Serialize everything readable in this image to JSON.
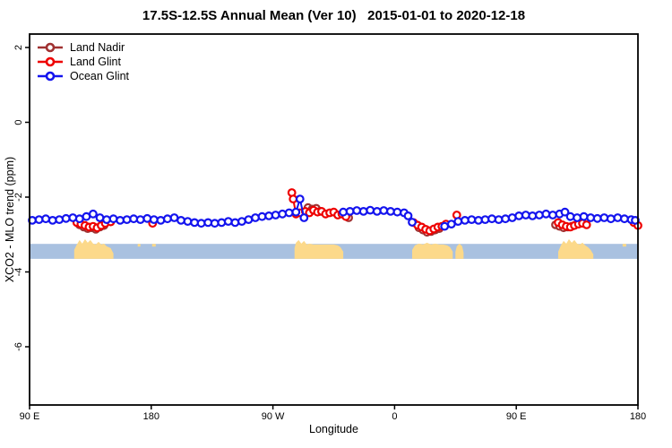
{
  "title": "17.5S-12.5S Annual Mean (Ver 10)   2015-01-01 to 2020-12-18",
  "axes": {
    "xlabel": "Longitude",
    "ylabel": "XCO2 - MLO trend (ppm)"
  },
  "legend": {
    "items": [
      {
        "id": "land-nadir",
        "label": "Land Nadir",
        "color": "#A03232"
      },
      {
        "id": "land-glint",
        "label": "Land Glint",
        "color": "#EE0000"
      },
      {
        "id": "ocean-glint",
        "label": "Ocean Glint",
        "color": "#1414EE"
      }
    ]
  },
  "chart_data": {
    "type": "line",
    "title": "17.5S-12.5S Annual Mean (Ver 10)   2015-01-01 to 2020-12-18",
    "xlabel": "Longitude",
    "ylabel": "XCO2 - MLO trend (ppm)",
    "x_units": "degrees eastward along axis, starting at 90E and wrapping past 180, 90W, 0, 90E to 180",
    "x_axis": {
      "range_deg": [
        90,
        540
      ],
      "ticks_deg": [
        90,
        180,
        270,
        360,
        450,
        540
      ],
      "tick_labels": [
        "90 E",
        "180",
        "90 W",
        "0",
        "90 E",
        "180"
      ]
    },
    "y_axis": {
      "range": [
        -7.5,
        2.4
      ],
      "ticks": [
        2,
        0,
        -2,
        -4,
        -6
      ],
      "tick_labels": [
        "2",
        "0",
        "-2",
        "-4",
        "-6"
      ],
      "grid": false
    },
    "legend_position": "top-left-inside",
    "series": [
      {
        "id": "land-nadir",
        "name": "Land Nadir",
        "color": "#A03232",
        "marker": "open-circle",
        "gap_break_deg": 7,
        "points": [
          [
            127,
            -2.74
          ],
          [
            130,
            -2.8
          ],
          [
            133,
            -2.84
          ],
          [
            136,
            -2.82
          ],
          [
            139,
            -2.86
          ],
          [
            142,
            -2.8
          ],
          [
            145,
            -2.76
          ],
          [
            296,
            -2.28
          ],
          [
            299,
            -2.32
          ],
          [
            302,
            -2.3
          ],
          [
            305,
            -2.38
          ],
          [
            326,
            -2.55
          ],
          [
            378,
            -2.82
          ],
          [
            381,
            -2.88
          ],
          [
            384,
            -2.94
          ],
          [
            387,
            -2.92
          ],
          [
            390,
            -2.88
          ],
          [
            393,
            -2.84
          ],
          [
            479,
            -2.74
          ],
          [
            482,
            -2.78
          ],
          [
            485,
            -2.82
          ],
          [
            488,
            -2.8
          ],
          [
            491,
            -2.78
          ]
        ]
      },
      {
        "id": "land-glint",
        "name": "Land Glint",
        "color": "#EE0000",
        "marker": "open-circle",
        "gap_break_deg": 7,
        "points": [
          [
            125,
            -2.68
          ],
          [
            128,
            -2.72
          ],
          [
            131,
            -2.76
          ],
          [
            134,
            -2.8
          ],
          [
            137,
            -2.78
          ],
          [
            140,
            -2.82
          ],
          [
            143,
            -2.76
          ],
          [
            146,
            -2.7
          ],
          [
            150,
            -2.66
          ],
          [
            181,
            -2.7
          ],
          [
            284,
            -1.88
          ],
          [
            285,
            -2.05
          ],
          [
            287,
            -2.45
          ],
          [
            290,
            -2.42
          ],
          [
            294,
            -2.38
          ],
          [
            297,
            -2.42
          ],
          [
            300,
            -2.35
          ],
          [
            303,
            -2.4
          ],
          [
            306,
            -2.38
          ],
          [
            309,
            -2.45
          ],
          [
            312,
            -2.42
          ],
          [
            315,
            -2.4
          ],
          [
            318,
            -2.48
          ],
          [
            321,
            -2.45
          ],
          [
            324,
            -2.52
          ],
          [
            374,
            -2.68
          ],
          [
            377,
            -2.75
          ],
          [
            380,
            -2.8
          ],
          [
            383,
            -2.86
          ],
          [
            386,
            -2.9
          ],
          [
            389,
            -2.85
          ],
          [
            392,
            -2.8
          ],
          [
            395,
            -2.78
          ],
          [
            398,
            -2.72
          ],
          [
            406,
            -2.48
          ],
          [
            481,
            -2.68
          ],
          [
            484,
            -2.74
          ],
          [
            487,
            -2.78
          ],
          [
            490,
            -2.8
          ],
          [
            493,
            -2.76
          ],
          [
            496,
            -2.72
          ],
          [
            499,
            -2.7
          ],
          [
            502,
            -2.74
          ],
          [
            537,
            -2.68
          ],
          [
            540,
            -2.76
          ]
        ]
      },
      {
        "id": "ocean-glint",
        "name": "Ocean Glint",
        "color": "#1414EE",
        "marker": "open-circle",
        "gap_break_deg": 9,
        "points": [
          [
            92,
            -2.62
          ],
          [
            97,
            -2.6
          ],
          [
            102,
            -2.58
          ],
          [
            107,
            -2.62
          ],
          [
            112,
            -2.6
          ],
          [
            117,
            -2.57
          ],
          [
            122,
            -2.55
          ],
          [
            127,
            -2.58
          ],
          [
            132,
            -2.52
          ],
          [
            137,
            -2.45
          ],
          [
            142,
            -2.55
          ],
          [
            147,
            -2.6
          ],
          [
            152,
            -2.58
          ],
          [
            157,
            -2.62
          ],
          [
            162,
            -2.6
          ],
          [
            167,
            -2.58
          ],
          [
            172,
            -2.6
          ],
          [
            177,
            -2.57
          ],
          [
            182,
            -2.6
          ],
          [
            187,
            -2.62
          ],
          [
            192,
            -2.58
          ],
          [
            197,
            -2.55
          ],
          [
            202,
            -2.62
          ],
          [
            207,
            -2.65
          ],
          [
            212,
            -2.68
          ],
          [
            217,
            -2.7
          ],
          [
            222,
            -2.68
          ],
          [
            227,
            -2.7
          ],
          [
            232,
            -2.68
          ],
          [
            237,
            -2.65
          ],
          [
            242,
            -2.68
          ],
          [
            247,
            -2.65
          ],
          [
            252,
            -2.6
          ],
          [
            257,
            -2.55
          ],
          [
            262,
            -2.52
          ],
          [
            267,
            -2.5
          ],
          [
            272,
            -2.48
          ],
          [
            277,
            -2.45
          ],
          [
            282,
            -2.42
          ],
          [
            287,
            -2.4
          ],
          [
            290,
            -2.05
          ],
          [
            293,
            -2.55
          ],
          [
            322,
            -2.4
          ],
          [
            327,
            -2.38
          ],
          [
            332,
            -2.36
          ],
          [
            337,
            -2.38
          ],
          [
            342,
            -2.35
          ],
          [
            347,
            -2.38
          ],
          [
            352,
            -2.36
          ],
          [
            357,
            -2.38
          ],
          [
            362,
            -2.4
          ],
          [
            367,
            -2.42
          ],
          [
            370,
            -2.5
          ],
          [
            373,
            -2.67
          ],
          [
            397,
            -2.78
          ],
          [
            402,
            -2.72
          ],
          [
            407,
            -2.65
          ],
          [
            412,
            -2.62
          ],
          [
            417,
            -2.6
          ],
          [
            422,
            -2.62
          ],
          [
            427,
            -2.6
          ],
          [
            432,
            -2.58
          ],
          [
            437,
            -2.6
          ],
          [
            442,
            -2.58
          ],
          [
            447,
            -2.55
          ],
          [
            452,
            -2.5
          ],
          [
            457,
            -2.48
          ],
          [
            462,
            -2.5
          ],
          [
            467,
            -2.48
          ],
          [
            472,
            -2.45
          ],
          [
            477,
            -2.48
          ],
          [
            482,
            -2.45
          ],
          [
            486,
            -2.4
          ],
          [
            490,
            -2.52
          ],
          [
            495,
            -2.55
          ],
          [
            500,
            -2.52
          ],
          [
            505,
            -2.55
          ],
          [
            510,
            -2.57
          ],
          [
            515,
            -2.55
          ],
          [
            520,
            -2.58
          ],
          [
            525,
            -2.55
          ],
          [
            530,
            -2.58
          ],
          [
            535,
            -2.6
          ],
          [
            538,
            -2.62
          ]
        ]
      }
    ],
    "surface_band": {
      "description": "land/ocean strip across all longitudes",
      "top_value": -3.25,
      "bottom_value": -3.65,
      "ocean_color": "#A9C1E0",
      "land_color": "#FCD98A",
      "land_patches": [
        {
          "name": "australia-west-wrap",
          "profile": [
            [
              123,
              10
            ],
            [
              125,
              16
            ],
            [
              127,
              21
            ],
            [
              129,
              17
            ],
            [
              131,
              22
            ],
            [
              133,
              18
            ],
            [
              135,
              21
            ],
            [
              137,
              17
            ],
            [
              139,
              16
            ],
            [
              141,
              19
            ],
            [
              143,
              16
            ],
            [
              145,
              17
            ],
            [
              147,
              14
            ],
            [
              150,
              12
            ],
            [
              152,
              6
            ]
          ]
        },
        {
          "name": "south-america",
          "profile": [
            [
              286,
              12
            ],
            [
              287,
              18
            ],
            [
              289,
              21
            ],
            [
              291,
              17
            ],
            [
              293,
              20
            ],
            [
              295,
              16
            ],
            [
              297,
              17
            ],
            [
              300,
              16
            ],
            [
              305,
              16
            ],
            [
              310,
              16
            ],
            [
              315,
              16
            ],
            [
              318,
              15
            ],
            [
              320,
              13
            ],
            [
              322,
              8
            ]
          ]
        },
        {
          "name": "africa",
          "profile": [
            [
              373,
              10
            ],
            [
              375,
              15
            ],
            [
              378,
              17
            ],
            [
              381,
              16
            ],
            [
              384,
              18
            ],
            [
              387,
              16
            ],
            [
              390,
              17
            ],
            [
              393,
              16
            ],
            [
              396,
              16
            ],
            [
              399,
              15
            ],
            [
              401,
              13
            ],
            [
              403,
              8
            ]
          ]
        },
        {
          "name": "madagascar",
          "profile": [
            [
              405,
              8
            ],
            [
              406,
              14
            ],
            [
              408,
              17
            ],
            [
              410,
              14
            ],
            [
              411,
              7
            ]
          ]
        },
        {
          "name": "australia-east-wrap",
          "profile": [
            [
              481,
              8
            ],
            [
              483,
              15
            ],
            [
              485,
              20
            ],
            [
              487,
              17
            ],
            [
              489,
              22
            ],
            [
              491,
              18
            ],
            [
              493,
              21
            ],
            [
              495,
              17
            ],
            [
              497,
              16
            ],
            [
              499,
              18
            ],
            [
              501,
              15
            ],
            [
              503,
              13
            ],
            [
              505,
              10
            ],
            [
              507,
              5
            ]
          ]
        }
      ],
      "islands": [
        {
          "name": "island-1",
          "lon": 171,
          "w": 3,
          "h": 3
        },
        {
          "name": "island-2",
          "lon": 182,
          "w": 4,
          "h": 3
        },
        {
          "name": "island-3",
          "lon": 530,
          "w": 4,
          "h": 3
        }
      ]
    }
  }
}
